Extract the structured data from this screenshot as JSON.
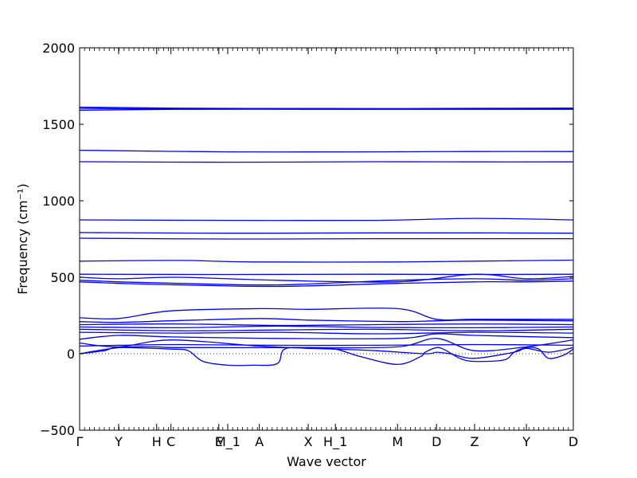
{
  "chart_data": {
    "type": "line",
    "xlabel": "Wave vector",
    "ylabel": "Frequency (cm⁻¹)",
    "ylim": [
      -500,
      2000
    ],
    "yticks": [
      -500,
      0,
      500,
      1000,
      1500,
      2000
    ],
    "xlim": [
      0,
      1
    ],
    "grid": false,
    "high_symmetry_points": [
      {
        "label": "Γ",
        "x": 0.0
      },
      {
        "label": "Y",
        "x": 0.079
      },
      {
        "label": "H",
        "x": 0.156
      },
      {
        "label": "C",
        "x": 0.185
      },
      {
        "label": "E",
        "x": 0.282
      },
      {
        "label": "M_1",
        "x": 0.3
      },
      {
        "label": "A",
        "x": 0.364
      },
      {
        "label": "X",
        "x": 0.463
      },
      {
        "label": "H_1",
        "x": 0.518
      },
      {
        "label": "M",
        "x": 0.644
      },
      {
        "label": "D",
        "x": 0.723
      },
      {
        "label": "Z",
        "x": 0.8
      },
      {
        "label": "Y",
        "x": 0.905
      },
      {
        "label": "D",
        "x": 1.0
      }
    ],
    "zero_line": {
      "y": 0,
      "style": "dotted"
    },
    "series": [
      {
        "x": [
          0.0,
          0.2,
          0.5,
          0.7,
          1.0
        ],
        "values": [
          1612,
          1605,
          1603,
          1603,
          1606
        ]
      },
      {
        "x": [
          0.0,
          0.2,
          0.5,
          0.7,
          1.0
        ],
        "values": [
          1604,
          1600,
          1600,
          1600,
          1603
        ]
      },
      {
        "x": [
          0.0,
          0.2,
          0.5,
          0.7,
          1.0
        ],
        "values": [
          1592,
          1598,
          1598,
          1598,
          1598
        ]
      },
      {
        "x": [
          0.0,
          0.3,
          0.6,
          0.8,
          1.0
        ],
        "values": [
          1330,
          1320,
          1320,
          1322,
          1322
        ]
      },
      {
        "x": [
          0.0,
          0.3,
          0.6,
          0.8,
          1.0
        ],
        "values": [
          1255,
          1252,
          1255,
          1254,
          1254
        ]
      },
      {
        "x": [
          0.0,
          0.3,
          0.6,
          0.8,
          1.0
        ],
        "values": [
          875,
          872,
          872,
          885,
          875
        ]
      },
      {
        "x": [
          0.0,
          0.3,
          0.6,
          0.8,
          1.0
        ],
        "values": [
          792,
          788,
          790,
          790,
          788
        ]
      },
      {
        "x": [
          0.0,
          0.3,
          0.6,
          0.8,
          1.0
        ],
        "values": [
          755,
          750,
          752,
          752,
          752
        ]
      },
      {
        "x": [
          0.0,
          0.2,
          0.35,
          0.644,
          0.8,
          1.0
        ],
        "values": [
          605,
          610,
          600,
          600,
          605,
          612
        ]
      },
      {
        "x": [
          0.0,
          0.3,
          0.6,
          0.8,
          1.0
        ],
        "values": [
          520,
          518,
          520,
          518,
          520
        ]
      },
      {
        "x": [
          0.0,
          0.079,
          0.2,
          0.4,
          0.644,
          0.8,
          0.905,
          1.0
        ],
        "values": [
          500,
          490,
          500,
          480,
          470,
          520,
          490,
          505
        ]
      },
      {
        "x": [
          0.0,
          0.079,
          0.2,
          0.4,
          0.644,
          0.8,
          0.905,
          1.0
        ],
        "values": [
          480,
          470,
          460,
          450,
          480,
          490,
          480,
          490
        ]
      },
      {
        "x": [
          0.0,
          0.079,
          0.2,
          0.4,
          0.644,
          0.8,
          0.905,
          1.0
        ],
        "values": [
          470,
          460,
          450,
          440,
          460,
          470,
          470,
          475
        ]
      },
      {
        "x": [
          0.0,
          0.079,
          0.185,
          0.364,
          0.463,
          0.644,
          0.723,
          0.8,
          1.0
        ],
        "values": [
          235,
          230,
          280,
          295,
          290,
          295,
          225,
          225,
          225
        ]
      },
      {
        "x": [
          0.0,
          0.079,
          0.185,
          0.364,
          0.463,
          0.644,
          0.723,
          0.8,
          1.0
        ],
        "values": [
          210,
          205,
          215,
          230,
          220,
          210,
          215,
          220,
          215
        ]
      },
      {
        "x": [
          0.0,
          0.2,
          0.4,
          0.6,
          0.8,
          1.0
        ],
        "values": [
          190,
          195,
          185,
          190,
          195,
          190
        ]
      },
      {
        "x": [
          0.0,
          0.2,
          0.4,
          0.6,
          0.8,
          1.0
        ],
        "values": [
          175,
          170,
          180,
          172,
          170,
          175
        ]
      },
      {
        "x": [
          0.0,
          0.2,
          0.4,
          0.6,
          0.8,
          1.0
        ],
        "values": [
          160,
          150,
          155,
          160,
          150,
          160
        ]
      },
      {
        "x": [
          0.0,
          0.2,
          0.4,
          0.6,
          0.8,
          1.0
        ],
        "values": [
          140,
          135,
          140,
          130,
          140,
          135
        ]
      },
      {
        "x": [
          0.0,
          0.079,
          0.185,
          0.4,
          0.644,
          0.723,
          0.8,
          1.0
        ],
        "values": [
          95,
          120,
          110,
          100,
          100,
          130,
          120,
          105
        ]
      },
      {
        "x": [
          0.0,
          0.079,
          0.185,
          0.364,
          0.463,
          0.644,
          0.723,
          0.8,
          0.905,
          1.0
        ],
        "values": [
          70,
          45,
          90,
          50,
          40,
          45,
          100,
          20,
          45,
          90
        ]
      },
      {
        "x": [
          0.0,
          0.079,
          0.2,
          0.4,
          0.6,
          0.8,
          1.0
        ],
        "values": [
          50,
          55,
          60,
          55,
          55,
          60,
          55
        ]
      },
      {
        "x": [
          0.0,
          0.05,
          0.079,
          0.185,
          0.22,
          0.25,
          0.3,
          0.35,
          0.4,
          0.415,
          0.463,
          0.518,
          0.57,
          0.644,
          0.69,
          0.7,
          0.723,
          0.74,
          0.77,
          0.8,
          0.86,
          0.88,
          0.905,
          0.93,
          0.95,
          0.98,
          1.0
        ],
        "values": [
          0,
          20,
          40,
          30,
          20,
          -50,
          -75,
          -75,
          -65,
          30,
          40,
          30,
          -20,
          -70,
          -20,
          10,
          40,
          25,
          -30,
          -50,
          -40,
          10,
          40,
          30,
          -30,
          -10,
          30
        ]
      },
      {
        "x": [
          0.0,
          0.079,
          0.15,
          0.2,
          0.415,
          0.463,
          0.518,
          0.6,
          0.7,
          0.723,
          0.75,
          0.8,
          0.88,
          0.905,
          0.95,
          1.0
        ],
        "values": [
          0,
          40,
          45,
          40,
          40,
          35,
          30,
          20,
          0,
          10,
          0,
          -30,
          10,
          35,
          10,
          40
        ]
      }
    ]
  }
}
